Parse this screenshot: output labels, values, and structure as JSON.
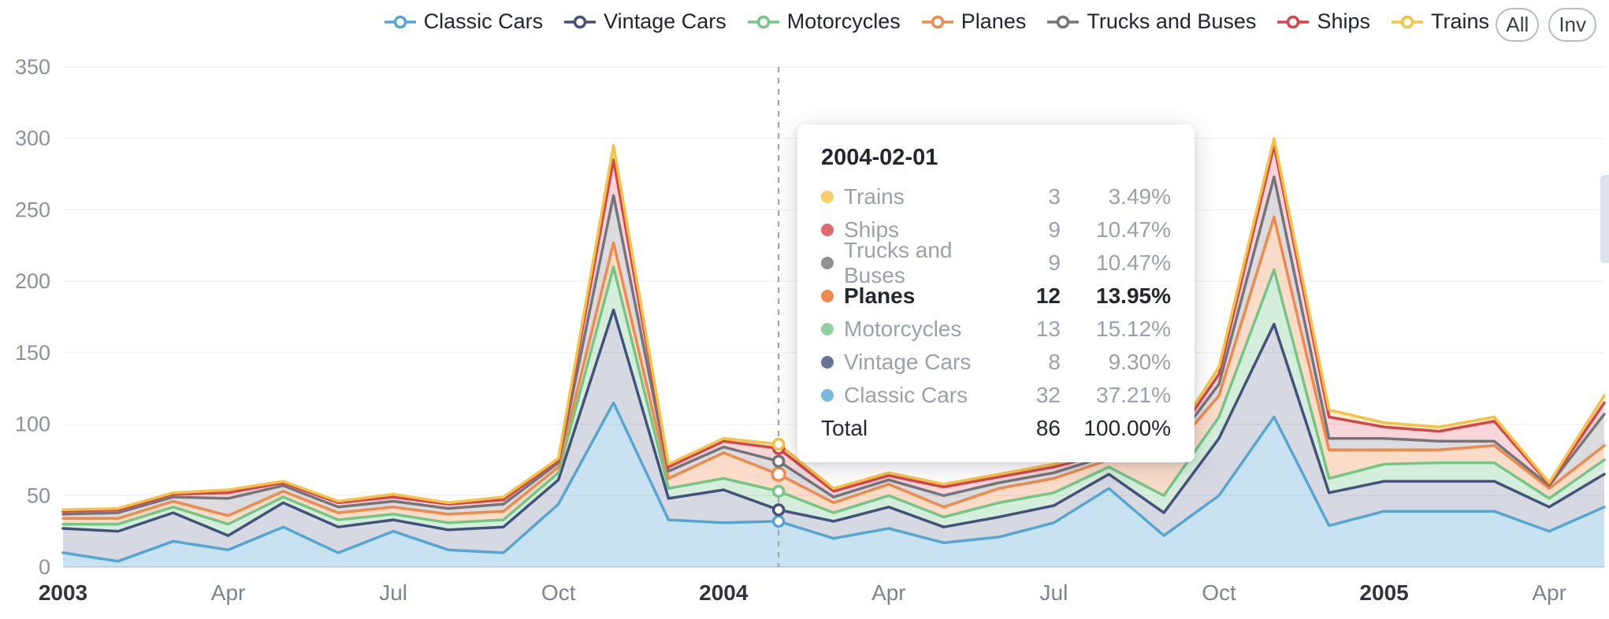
{
  "legend": {
    "items": [
      {
        "label": "Classic Cars",
        "color": "#55a6d3"
      },
      {
        "label": "Vintage Cars",
        "color": "#43527b"
      },
      {
        "label": "Motorcycles",
        "color": "#74c687"
      },
      {
        "label": "Planes",
        "color": "#ef8a4c"
      },
      {
        "label": "Trucks and Buses",
        "color": "#73757a"
      },
      {
        "label": "Ships",
        "color": "#d4454e"
      },
      {
        "label": "Trains",
        "color": "#f5c242"
      }
    ],
    "buttons": [
      {
        "label": "All"
      },
      {
        "label": "Inv"
      }
    ]
  },
  "tooltip": {
    "date": "2004-02-01",
    "rows": [
      {
        "name": "Trains",
        "value": "3",
        "percent": "3.49%",
        "color": "#f5c242"
      },
      {
        "name": "Ships",
        "value": "9",
        "percent": "10.47%",
        "color": "#d4454e"
      },
      {
        "name": "Trucks and Buses",
        "value": "9",
        "percent": "10.47%",
        "color": "#73757a"
      },
      {
        "name": "Planes",
        "value": "12",
        "percent": "13.95%",
        "color": "#ef8a4c",
        "bold": true
      },
      {
        "name": "Motorcycles",
        "value": "13",
        "percent": "15.12%",
        "color": "#74c687"
      },
      {
        "name": "Vintage Cars",
        "value": "8",
        "percent": "9.30%",
        "color": "#43527b"
      },
      {
        "name": "Classic Cars",
        "value": "32",
        "percent": "37.21%",
        "color": "#55a6d3"
      },
      {
        "name": "Total",
        "value": "86",
        "percent": "100.00%",
        "total": true
      }
    ]
  },
  "chart_data": {
    "type": "area",
    "stacked": true,
    "title": "",
    "xlabel": "",
    "ylabel": "",
    "ylim": [
      0,
      350
    ],
    "y_ticks": [
      0,
      50,
      100,
      150,
      200,
      250,
      300,
      350
    ],
    "grid": true,
    "legend_position": "top",
    "x": [
      "2003-01",
      "2003-02",
      "2003-03",
      "2003-04",
      "2003-05",
      "2003-06",
      "2003-07",
      "2003-08",
      "2003-09",
      "2003-10",
      "2003-11",
      "2003-12",
      "2004-01",
      "2004-02",
      "2004-03",
      "2004-04",
      "2004-05",
      "2004-06",
      "2004-07",
      "2004-08",
      "2004-09",
      "2004-10",
      "2004-11",
      "2004-12",
      "2005-01",
      "2005-02",
      "2005-03",
      "2005-04",
      "2005-05"
    ],
    "x_ticks": [
      {
        "i": 0,
        "label": "2003",
        "year": true
      },
      {
        "i": 3,
        "label": "Apr"
      },
      {
        "i": 6,
        "label": "Jul"
      },
      {
        "i": 9,
        "label": "Oct"
      },
      {
        "i": 12,
        "label": "2004",
        "year": true
      },
      {
        "i": 15,
        "label": "Apr"
      },
      {
        "i": 18,
        "label": "Jul"
      },
      {
        "i": 21,
        "label": "Oct"
      },
      {
        "i": 24,
        "label": "2005",
        "year": true
      },
      {
        "i": 27,
        "label": "Apr"
      }
    ],
    "hover": {
      "x_index": 13,
      "date": "2004-02-01",
      "emphasis": "Planes"
    },
    "series": [
      {
        "name": "Classic Cars",
        "color": "#55a6d3",
        "fill_opacity": 0.32,
        "values": [
          10,
          4,
          18,
          12,
          28,
          10,
          25,
          12,
          10,
          44,
          115,
          33,
          31,
          32,
          20,
          27,
          17,
          21,
          31,
          55,
          22,
          50,
          105,
          29,
          39,
          39,
          39,
          25,
          42
        ]
      },
      {
        "name": "Vintage Cars",
        "color": "#43527b",
        "fill_opacity": 0.22,
        "values": [
          17,
          21,
          20,
          10,
          17,
          18,
          8,
          14,
          18,
          17,
          65,
          15,
          23,
          8,
          12,
          15,
          11,
          14,
          12,
          10,
          16,
          40,
          65,
          23,
          21,
          21,
          21,
          17,
          23
        ]
      },
      {
        "name": "Motorcycles",
        "color": "#74c687",
        "fill_opacity": 0.3,
        "values": [
          3,
          5,
          4,
          8,
          4,
          5,
          4,
          5,
          5,
          5,
          30,
          7,
          8,
          13,
          6,
          8,
          7,
          10,
          9,
          5,
          12,
          15,
          38,
          10,
          12,
          13,
          13,
          6,
          10
        ]
      },
      {
        "name": "Planes",
        "color": "#ef8a4c",
        "fill_opacity": 0.3,
        "values": [
          4,
          4,
          4,
          6,
          4,
          5,
          5,
          6,
          6,
          4,
          17,
          7,
          18,
          12,
          7,
          8,
          7,
          10,
          10,
          5,
          25,
          15,
          37,
          20,
          10,
          9,
          12,
          7,
          10
        ]
      },
      {
        "name": "Trucks and Buses",
        "color": "#73757a",
        "fill_opacity": 0.25,
        "values": [
          3,
          4,
          3,
          12,
          4,
          4,
          4,
          4,
          5,
          3,
          33,
          5,
          4,
          9,
          4,
          3,
          8,
          4,
          4,
          3,
          2,
          8,
          28,
          8,
          8,
          6,
          3,
          2,
          22
        ]
      },
      {
        "name": "Ships",
        "color": "#d4454e",
        "fill_opacity": 0.22,
        "values": [
          2,
          2,
          2,
          4,
          2,
          3,
          3,
          3,
          3,
          2,
          25,
          3,
          4,
          9,
          4,
          3,
          6,
          4,
          4,
          2,
          2,
          7,
          22,
          15,
          8,
          7,
          14,
          1,
          8
        ]
      },
      {
        "name": "Trains",
        "color": "#f5c242",
        "fill_opacity": 0.25,
        "values": [
          1,
          1,
          1,
          2,
          1,
          1,
          2,
          1,
          2,
          1,
          10,
          2,
          2,
          3,
          2,
          2,
          2,
          2,
          2,
          1,
          1,
          5,
          5,
          5,
          3,
          3,
          3,
          1,
          5
        ]
      }
    ]
  }
}
